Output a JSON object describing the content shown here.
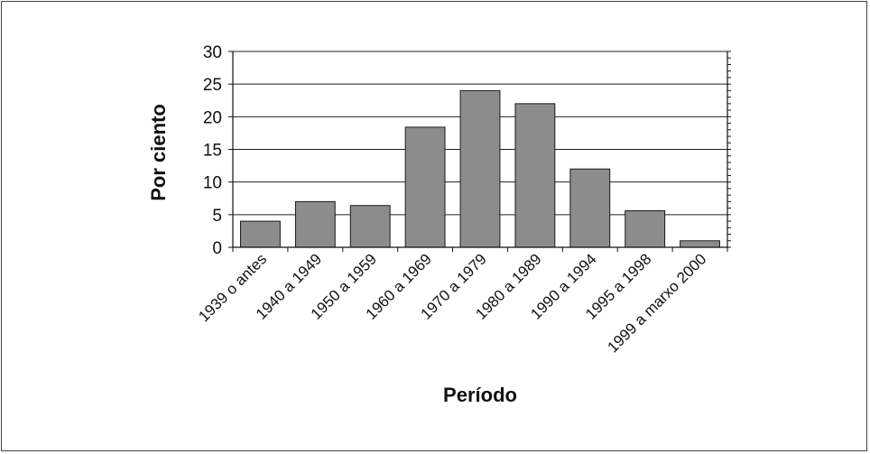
{
  "chart_data": {
    "type": "bar",
    "categories": [
      "1939 o antes",
      "1940 a 1949",
      "1950 a 1959",
      "1960 a 1969",
      "1970 a 1979",
      "1980 a 1989",
      "1990 a 1994",
      "1995 a 1998",
      "1999 a marxo 2000"
    ],
    "values": [
      4,
      7,
      6.4,
      18.4,
      24,
      22,
      12,
      5.6,
      1
    ],
    "title": "",
    "xlabel": "Período",
    "ylabel": "Por ciento",
    "ylim": [
      0,
      30
    ],
    "yticks": [
      0,
      5,
      10,
      15,
      20,
      25,
      30
    ],
    "grid": true,
    "legend": "none",
    "colors": {
      "bar": "#8c8c8c",
      "bar_edge": "#1a1a1a",
      "grid": "#222222"
    }
  }
}
